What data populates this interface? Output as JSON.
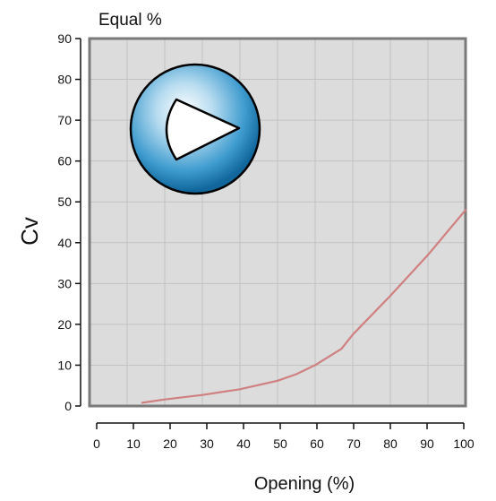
{
  "chart_data": {
    "type": "line",
    "title": "Equal %",
    "xlabel": "Opening (%)",
    "ylabel": "Cv",
    "xlim": [
      0,
      100
    ],
    "ylim": [
      0,
      90
    ],
    "xticks": [
      0,
      10,
      20,
      30,
      40,
      50,
      60,
      70,
      80,
      90,
      100
    ],
    "yticks": [
      0,
      10,
      20,
      30,
      40,
      50,
      60,
      70,
      80,
      90
    ],
    "grid": true,
    "legend": "none",
    "series": [
      {
        "color": "#d08080",
        "x": [
          14,
          20,
          30,
          40,
          50,
          55,
          60,
          67,
          70,
          80,
          90,
          100
        ],
        "y": [
          0.8,
          1.6,
          2.7,
          4.1,
          6.2,
          7.8,
          10,
          14,
          17.5,
          27,
          37,
          48
        ]
      }
    ]
  },
  "colors": {
    "plot_background": "#dcdcdc",
    "grid": "#c2c2c2",
    "frame": "#7a7a7a",
    "icon_ball": "#1a7fb8"
  },
  "icon": "valve-ball-icon"
}
